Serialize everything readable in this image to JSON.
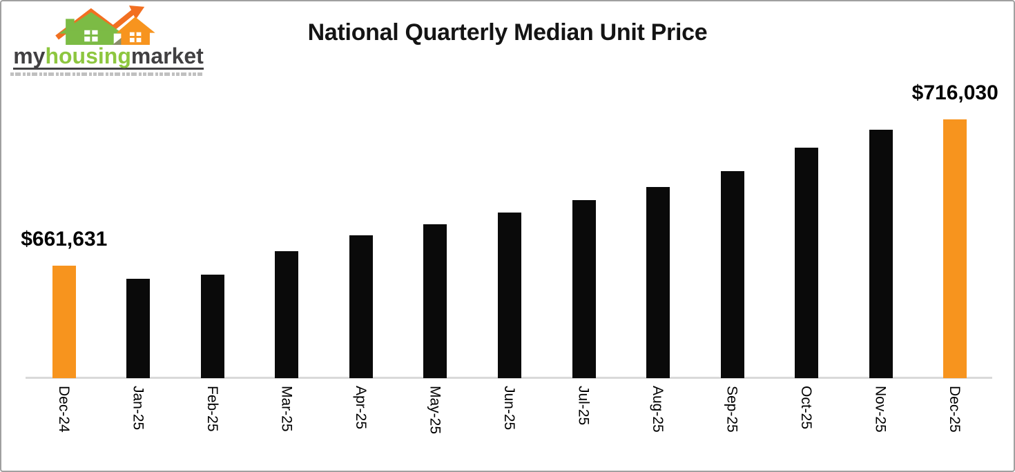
{
  "logo": {
    "brand_part_my": "my",
    "brand_part_housing": "housing",
    "brand_part_market": "market",
    "color_dark": "#414042",
    "color_green": "#8dc63f",
    "color_orange": "#f58220",
    "icon": "housing-market-logo-icon"
  },
  "chart_data": {
    "type": "bar",
    "title": "National Quarterly Median Unit Price",
    "categories": [
      "Dec-24",
      "Jan-25",
      "Feb-25",
      "Mar-25",
      "Apr-25",
      "May-25",
      "Jun-25",
      "Jul-25",
      "Aug-25",
      "Sep-25",
      "Oct-25",
      "Nov-25",
      "Dec-25"
    ],
    "values": [
      661631,
      657000,
      658400,
      667100,
      673000,
      677100,
      681500,
      686100,
      690900,
      696800,
      705500,
      712200,
      716030
    ],
    "data_labels": [
      {
        "index": 0,
        "text": "$661,631"
      },
      {
        "index": 12,
        "text": "$716,030"
      }
    ],
    "highlight_indices": [
      0,
      12
    ],
    "bar_color": "#0a0a0a",
    "highlight_color": "#f7941e",
    "axis_line_color": "#d9d9d9",
    "ylim": [
      620000,
      730000
    ],
    "xlabel": "",
    "ylabel": "",
    "grid": false,
    "legend": "none"
  }
}
